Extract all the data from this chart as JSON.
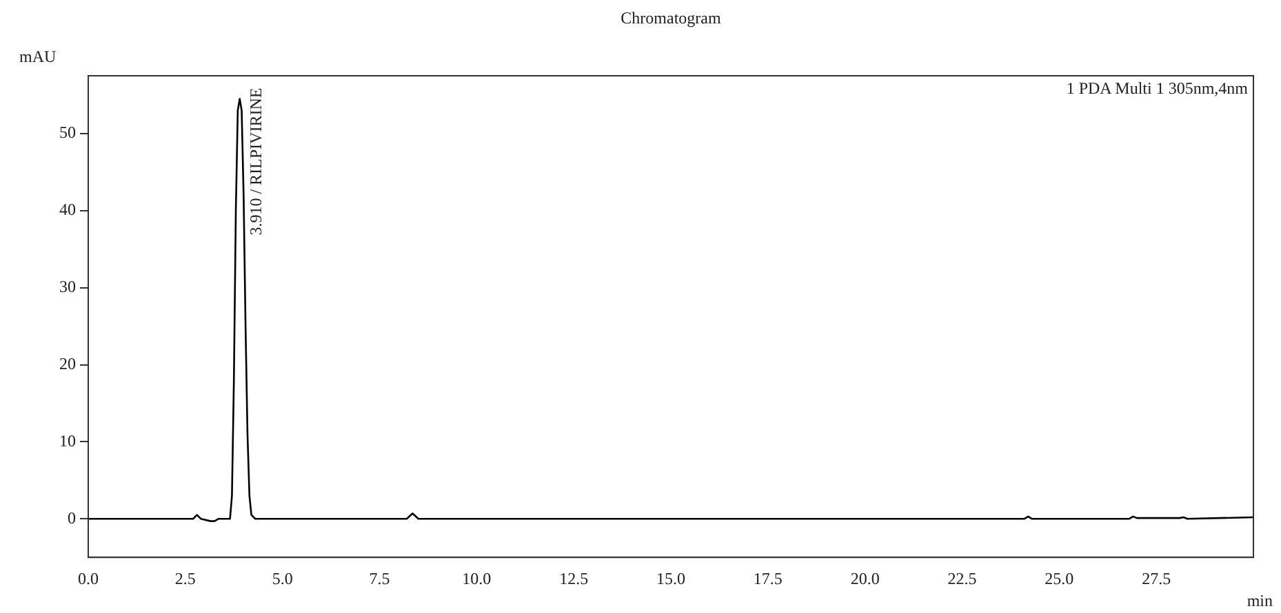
{
  "chart_data": {
    "type": "line",
    "title": "Chromatogram",
    "xlabel": "min",
    "ylabel": "mAU",
    "annotations": [
      {
        "text": "3.910 / RILPIVIRINE",
        "x": 3.91,
        "y": 54.5
      },
      "1 PDA Multi 1 305nm,4nm"
    ],
    "x": [
      0,
      2.7,
      2.8,
      2.9,
      3.15,
      3.25,
      3.35,
      3.65,
      3.7,
      3.75,
      3.8,
      3.85,
      3.9,
      3.95,
      4.0,
      4.05,
      4.1,
      4.15,
      4.2,
      4.3,
      8.2,
      8.35,
      8.5,
      24.1,
      24.2,
      24.3,
      26.8,
      26.9,
      27.0,
      28.1,
      28.2,
      28.3,
      30
    ],
    "series": [
      {
        "color": "#000000",
        "values": [
          0,
          0,
          0.5,
          0,
          -0.3,
          -0.3,
          0,
          0,
          3,
          18,
          40,
          53,
          54.5,
          53,
          42,
          25,
          11,
          3,
          0.5,
          0,
          0,
          0.7,
          0,
          0,
          0.3,
          0,
          0,
          0.3,
          0.1,
          0.1,
          0.2,
          0,
          0.2
        ]
      }
    ],
    "xlim": [
      0,
      30
    ],
    "ylim": [
      -5,
      57.5
    ],
    "xticks": [
      {
        "value": 0,
        "label": "0.0"
      },
      {
        "value": 2.5,
        "label": "2.5"
      },
      {
        "value": 5,
        "label": "5.0"
      },
      {
        "value": 7.5,
        "label": "7.5"
      },
      {
        "value": 10,
        "label": "10.0"
      },
      {
        "value": 12.5,
        "label": "12.5"
      },
      {
        "value": 15,
        "label": "15.0"
      },
      {
        "value": 17.5,
        "label": "17.5"
      },
      {
        "value": 20,
        "label": "20.0"
      },
      {
        "value": 22.5,
        "label": "22.5"
      },
      {
        "value": 25,
        "label": "25.0"
      },
      {
        "value": 27.5,
        "label": "27.5"
      },
      {
        "value": 30,
        "label": null
      }
    ],
    "yticks": [
      0,
      10,
      20,
      30,
      40,
      50
    ],
    "grid": false,
    "legend": false,
    "marker": "none",
    "line_style": "solid"
  }
}
